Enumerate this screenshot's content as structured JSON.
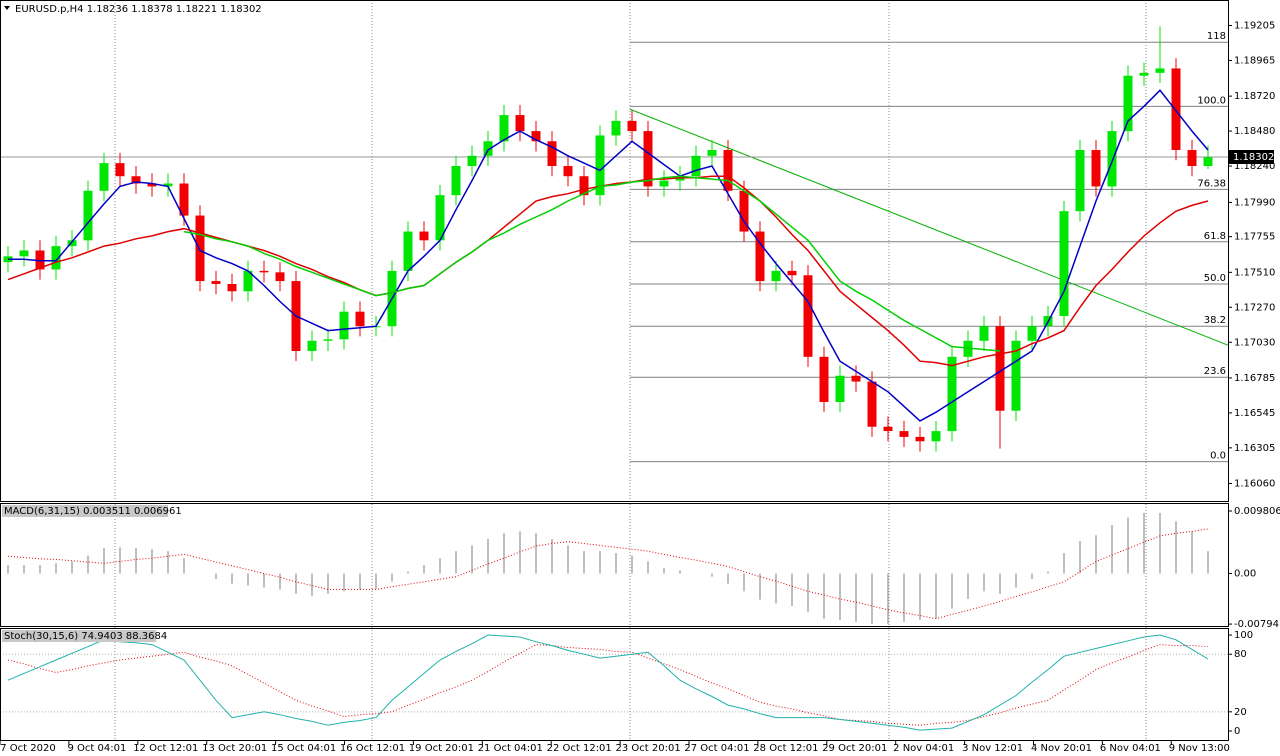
{
  "chart_data": [
    {
      "type": "candlestick",
      "title": "EURUSD.p,H4  1.18236 1.18378 1.18221 1.18302",
      "up_color": "#00e600",
      "down_color": "#f00000",
      "open": [
        1.1758,
        1.1762,
        1.1766,
        1.1753,
        1.1769,
        1.1773,
        1.1807,
        1.1826,
        1.1817,
        1.1812,
        1.181,
        1.1812,
        1.179,
        1.1745,
        1.1743,
        1.1738,
        1.1752,
        1.1751,
        1.1745,
        1.1697,
        1.1704,
        1.1705,
        1.1724,
        1.1714,
        1.1714,
        1.1752,
        1.1779,
        1.1773,
        1.1804,
        1.1824,
        1.1831,
        1.1841,
        1.1859,
        1.1848,
        1.1841,
        1.1824,
        1.1817,
        1.1804,
        1.1845,
        1.1855,
        1.1848,
        1.181,
        1.1814,
        1.1817,
        1.1831,
        1.1835,
        1.1807,
        1.1779,
        1.1745,
        1.1752,
        1.1749,
        1.1693,
        1.1662,
        1.168,
        1.1676,
        1.1645,
        1.1642,
        1.1638,
        1.1635,
        1.1642,
        1.1693,
        1.1704,
        1.1714,
        1.1656,
        1.1704,
        1.1714,
        1.1721,
        1.1793,
        1.1835,
        1.181,
        1.1848,
        1.1886,
        1.1888,
        1.1891,
        1.1835,
        1.1824
      ],
      "high": [
        1.1769,
        1.1773,
        1.1773,
        1.1776,
        1.178,
        1.1814,
        1.1833,
        1.1833,
        1.1824,
        1.1819,
        1.1819,
        1.1819,
        1.1797,
        1.1752,
        1.175,
        1.1759,
        1.1759,
        1.1758,
        1.1752,
        1.1711,
        1.1712,
        1.1731,
        1.1731,
        1.1721,
        1.1759,
        1.1786,
        1.1786,
        1.1811,
        1.1831,
        1.1838,
        1.1848,
        1.1866,
        1.1866,
        1.1855,
        1.1848,
        1.1831,
        1.1824,
        1.1852,
        1.1862,
        1.1862,
        1.1855,
        1.1821,
        1.1824,
        1.1838,
        1.1842,
        1.1842,
        1.1814,
        1.1786,
        1.1759,
        1.1759,
        1.1756,
        1.17,
        1.1687,
        1.1687,
        1.1683,
        1.1652,
        1.1649,
        1.1645,
        1.1649,
        1.17,
        1.1711,
        1.1721,
        1.1721,
        1.1711,
        1.1721,
        1.1728,
        1.18,
        1.1842,
        1.1842,
        1.1855,
        1.1893,
        1.1895,
        1.192,
        1.1898,
        1.1842,
        1.1838
      ],
      "low": [
        1.1751,
        1.1755,
        1.1746,
        1.1746,
        1.1762,
        1.1766,
        1.18,
        1.181,
        1.1805,
        1.1803,
        1.1803,
        1.1783,
        1.1738,
        1.1736,
        1.1731,
        1.1731,
        1.1744,
        1.1738,
        1.169,
        1.169,
        1.1697,
        1.1698,
        1.1707,
        1.1707,
        1.1707,
        1.1745,
        1.1766,
        1.1766,
        1.1797,
        1.1817,
        1.1824,
        1.1834,
        1.1841,
        1.1834,
        1.1817,
        1.181,
        1.1797,
        1.1797,
        1.1838,
        1.1841,
        1.1803,
        1.1803,
        1.1807,
        1.181,
        1.1824,
        1.18,
        1.1772,
        1.1738,
        1.1738,
        1.1742,
        1.1686,
        1.1655,
        1.1655,
        1.1669,
        1.1638,
        1.1635,
        1.1631,
        1.1628,
        1.1628,
        1.1635,
        1.1686,
        1.1697,
        1.163,
        1.1649,
        1.1697,
        1.1707,
        1.1714,
        1.1786,
        1.1803,
        1.1803,
        1.1841,
        1.1879,
        1.1881,
        1.1828,
        1.1817,
        1.1822
      ],
      "close": [
        1.1762,
        1.1766,
        1.1753,
        1.1769,
        1.1773,
        1.1807,
        1.1826,
        1.1817,
        1.1812,
        1.181,
        1.1812,
        1.179,
        1.1745,
        1.1743,
        1.1738,
        1.1752,
        1.1751,
        1.1745,
        1.1697,
        1.1704,
        1.1705,
        1.1724,
        1.1714,
        1.1714,
        1.1752,
        1.1779,
        1.1773,
        1.1804,
        1.1824,
        1.1831,
        1.1841,
        1.1859,
        1.1848,
        1.1841,
        1.1824,
        1.1817,
        1.1804,
        1.1845,
        1.1855,
        1.1848,
        1.181,
        1.1814,
        1.1817,
        1.1831,
        1.1835,
        1.1807,
        1.1779,
        1.1745,
        1.1752,
        1.1749,
        1.1693,
        1.1662,
        1.168,
        1.1676,
        1.1645,
        1.1642,
        1.1638,
        1.1635,
        1.1642,
        1.1693,
        1.1704,
        1.1714,
        1.1656,
        1.1704,
        1.1714,
        1.1721,
        1.1793,
        1.1835,
        1.181,
        1.1848,
        1.1886,
        1.1888,
        1.1891,
        1.1835,
        1.1824,
        1.183
      ],
      "series": [
        {
          "color": "#0000c8",
          "values": [
            1.176,
            1.176,
            1.1759,
            1.1759,
            1.1772,
            1.1785,
            1.1798,
            1.181,
            1.1813,
            1.1812,
            1.181,
            1.1788,
            1.1766,
            1.1761,
            1.1757,
            1.1752,
            1.1742,
            1.1731,
            1.1721,
            1.1716,
            1.1711,
            1.1712,
            1.1713,
            1.1714,
            1.1733,
            1.1752,
            1.1762,
            1.1773,
            1.1794,
            1.1814,
            1.1835,
            1.1842,
            1.1848,
            1.1842,
            1.1837,
            1.1831,
            1.1826,
            1.1821,
            1.1831,
            1.1841,
            1.1833,
            1.1825,
            1.1817,
            1.1821,
            1.1824,
            1.1805,
            1.1786,
            1.1771,
            1.1757,
            1.1744,
            1.1731,
            1.171,
            1.169,
            1.1683,
            1.1676,
            1.1669,
            1.1659,
            1.1649,
            1.1655,
            1.1662,
            1.1669,
            1.1676,
            1.1683,
            1.169,
            1.1697,
            1.1717,
            1.1738,
            1.1769,
            1.18,
            1.1827,
            1.1855,
            1.1865,
            1.1876,
            1.1862,
            1.1848,
            1.1835
          ]
        },
        {
          "color": "#e00000",
          "values": [
            1.1746,
            1.175,
            1.1754,
            1.1758,
            1.1761,
            1.1765,
            1.1769,
            1.1771,
            1.1774,
            1.1776,
            1.1779,
            1.1781,
            1.1778,
            1.1775,
            1.1772,
            1.1769,
            1.1766,
            1.1762,
            1.1757,
            1.1753,
            1.1748,
            1.1744,
            1.1739,
            1.1735,
            1.1737,
            1.174,
            1.1742,
            1.175,
            1.1758,
            1.1765,
            1.1773,
            1.1782,
            1.1791,
            1.18,
            1.1803,
            1.1805,
            1.1808,
            1.181,
            1.1812,
            1.1813,
            1.1815,
            1.1815,
            1.1816,
            1.1816,
            1.1817,
            1.1817,
            1.1809,
            1.18,
            1.1789,
            1.1777,
            1.1766,
            1.1752,
            1.1738,
            1.1729,
            1.172,
            1.1711,
            1.1701,
            1.169,
            1.1689,
            1.1687,
            1.169,
            1.1693,
            1.1695,
            1.1697,
            1.1702,
            1.1706,
            1.1711,
            1.1727,
            1.1742,
            1.1753,
            1.1765,
            1.1776,
            1.1785,
            1.1793,
            1.1797,
            1.18
          ]
        },
        {
          "color": "#00d000",
          "values": [
            null,
            null,
            null,
            null,
            null,
            null,
            null,
            null,
            null,
            null,
            null,
            1.1779,
            1.1777,
            1.1774,
            1.1772,
            1.1769,
            1.1764,
            1.176,
            1.1755,
            1.1751,
            1.1747,
            1.1743,
            1.1739,
            1.1735,
            1.1737,
            1.174,
            1.1742,
            1.175,
            1.1758,
            1.1765,
            1.1773,
            1.1778,
            1.1784,
            1.1789,
            1.1794,
            1.18,
            1.1805,
            1.181,
            1.1811,
            1.1813,
            1.1814,
            1.1816,
            1.1817,
            1.1816,
            1.1815,
            1.1814,
            1.1807,
            1.18,
            1.1791,
            1.1782,
            1.1773,
            1.1759,
            1.1745,
            1.1738,
            1.1732,
            1.1725,
            1.1718,
            1.1712,
            1.1706,
            1.17,
            1.1699,
            1.1698,
            1.1697,
            null,
            null,
            null,
            null,
            null,
            null,
            null,
            null,
            null,
            null,
            null,
            null,
            null
          ]
        }
      ],
      "fibonacci": {
        "color": "#808080",
        "label_color": "#1a1a80",
        "levels": [
          {
            "value": 1.1909,
            "label": "118"
          },
          {
            "value": 1.1865,
            "label": "100.0"
          },
          {
            "value": 1.1808,
            "label": "76.38"
          },
          {
            "value": 1.1772,
            "label": "61.8"
          },
          {
            "value": 1.1743,
            "label": "50.0"
          },
          {
            "value": 1.1714,
            "label": "38.2"
          },
          {
            "value": 1.1679,
            "label": "23.6"
          },
          {
            "value": 1.1621,
            "label": "0.0"
          }
        ]
      },
      "trendline": {
        "color": "#00b000",
        "values": [
          1.1863,
          1.1701
        ]
      },
      "current_price": {
        "value": 1.18302,
        "label": "1.18302"
      },
      "ylim": [
        1.1594,
        1.1938
      ],
      "yticks": [
        1.19205,
        {
          "value": 1.18965,
          "label": "1.18965"
        },
        {
          "value": 1.1872,
          "label": "1.18720"
        },
        {
          "value": 1.1848,
          "label": "1.18480"
        },
        {
          "value": 1.1824,
          "label": "1.18240"
        },
        {
          "value": 1.1799,
          "label": "1.17990"
        },
        1.17755,
        {
          "value": 1.1751,
          "label": "1.17510"
        },
        {
          "value": 1.1727,
          "label": "1.17270"
        },
        {
          "value": 1.1703,
          "label": "1.17030"
        },
        1.16785,
        1.16545,
        1.16305,
        {
          "value": 1.1606,
          "label": "1.16060"
        }
      ],
      "time_labels": [
        "7 Oct 2020",
        "9 Oct 04:01",
        "12 Oct 12:01",
        "13 Oct 20:01",
        "15 Oct 04:01",
        "16 Oct 12:01",
        "19 Oct 20:01",
        "21 Oct 04:01",
        "22 Oct 12:01",
        "23 Oct 20:01",
        "27 Oct 04:01",
        "28 Oct 12:01",
        "29 Oct 20:01",
        "2 Nov 04:01",
        "3 Nov 12:01",
        "4 Nov 20:01",
        "6 Nov 04:01",
        "9 Nov 13:00"
      ]
    },
    {
      "type": "macd",
      "title": "MACD(6,31,15) 0.003511 0.006961",
      "histogram": {
        "color": "#a8a8a8",
        "values": [
          0.0013,
          0.0013,
          0.0013,
          0.0016,
          0.0019,
          0.0028,
          0.004,
          0.0041,
          0.004,
          0.0038,
          0.0035,
          0.0024,
          0,
          -0.0009,
          -0.0016,
          -0.0019,
          -0.0022,
          -0.0025,
          -0.0032,
          -0.0035,
          -0.0032,
          -0.0028,
          -0.0025,
          -0.0024,
          -0.0013,
          0.0003,
          0.0013,
          0.0024,
          0.0035,
          0.0044,
          0.0054,
          0.0063,
          0.0066,
          0.0063,
          0.0054,
          0.0044,
          0.0035,
          0.0035,
          0.0032,
          0.0028,
          0.0019,
          0.0009,
          0.0005,
          0,
          -0.0005,
          -0.0016,
          -0.0028,
          -0.0041,
          -0.0047,
          -0.0051,
          -0.006,
          -0.0071,
          -0.0073,
          -0.0076,
          -0.0079,
          -0.0079,
          -0.0076,
          -0.0073,
          -0.0071,
          -0.0055,
          -0.004,
          -0.0028,
          -0.0032,
          -0.0022,
          -0.0009,
          0.0003,
          0.0032,
          0.0051,
          0.006,
          0.0076,
          0.0088,
          0.0095,
          0.0095,
          0.0082,
          0.0066,
          0.0035
        ]
      },
      "signal": {
        "color": "#e00000",
        "values": [
          0.0027,
          0.0025,
          0.0023,
          0.0022,
          0.002,
          0.0018,
          0.0016,
          0.0019,
          0.0022,
          0.0024,
          0.0027,
          0.003,
          0.0024,
          0.0018,
          0.0012,
          0.0006,
          0.0,
          -0.0006,
          -0.0013,
          -0.0019,
          -0.0025,
          -0.0025,
          -0.0025,
          -0.0025,
          -0.0021,
          -0.0017,
          -0.0013,
          -0.0009,
          -0.0005,
          0.0005,
          0.0015,
          0.0024,
          0.0034,
          0.0043,
          0.0047,
          0.005,
          0.0047,
          0.0044,
          0.0041,
          0.0038,
          0.0035,
          0.003,
          0.0025,
          0.0021,
          0.0016,
          0.0011,
          0.0003,
          -0.0005,
          -0.0012,
          -0.002,
          -0.0028,
          -0.0034,
          -0.004,
          -0.0045,
          -0.0051,
          -0.0057,
          -0.0062,
          -0.0066,
          -0.0071,
          -0.0064,
          -0.0058,
          -0.0051,
          -0.0044,
          -0.0036,
          -0.0029,
          -0.0021,
          -0.0013,
          0.0003,
          0.0019,
          0.0029,
          0.0039,
          0.0049,
          0.0059,
          0.0063,
          0.0066,
          0.007
        ]
      },
      "ylim": [
        -0.0084,
        0.0109
      ],
      "yticks": [
        0.009806,
        {
          "value": 0,
          "label": "0.00"
        },
        -0.007941
      ]
    },
    {
      "type": "stochastic",
      "title": "Stoch(30,15,6) 74.9403 88.3684",
      "main": {
        "color": "#20b2aa",
        "values": [
          53,
          60,
          67,
          74,
          81,
          88,
          95,
          93,
          92,
          90,
          82,
          74,
          53,
          32,
          14,
          17,
          20,
          17,
          13,
          10,
          6,
          9,
          11,
          14,
          32,
          46,
          60,
          74,
          83,
          91,
          100,
          99,
          98,
          93,
          89,
          84,
          80,
          76,
          78,
          80,
          82,
          68,
          53,
          44,
          36,
          27,
          23,
          18,
          14,
          14,
          14,
          14,
          12,
          10,
          8,
          6,
          4,
          1,
          2,
          3,
          10,
          17,
          27,
          37,
          51,
          64,
          78,
          82,
          86,
          90,
          94,
          98,
          100,
          95,
          85,
          75
        ]
      },
      "signal": {
        "color": "#e00000",
        "values": [
          74,
          70,
          65,
          61,
          64,
          68,
          71,
          74,
          76,
          78,
          80,
          82,
          77,
          73,
          68,
          59,
          50,
          41,
          32,
          26,
          21,
          15,
          17,
          18,
          20,
          27,
          33,
          40,
          46,
          53,
          62,
          72,
          81,
          90,
          89,
          87,
          86,
          85,
          83,
          82,
          76,
          70,
          64,
          57,
          50,
          44,
          37,
          30,
          26,
          23,
          19,
          16,
          12,
          11,
          10,
          8,
          7,
          6,
          8,
          9,
          11,
          15,
          19,
          24,
          28,
          32,
          43,
          53,
          64,
          71,
          77,
          84,
          90,
          89,
          89,
          88
        ]
      },
      "levels": [
        80,
        20
      ],
      "ylim": [
        -10.4,
        106.3
      ],
      "yticks": [
        100,
        80,
        20,
        0
      ]
    }
  ]
}
